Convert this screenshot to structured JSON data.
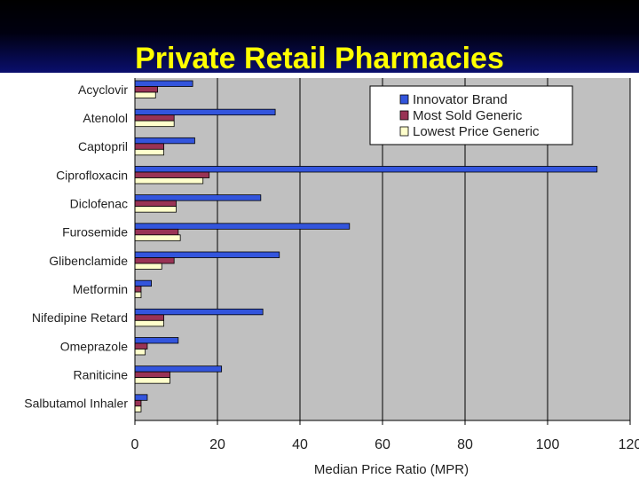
{
  "slide": {
    "title": "Private Retail Pharmacies"
  },
  "chart_data": {
    "type": "bar",
    "orientation": "horizontal",
    "title": "Private Retail Pharmacies",
    "xlabel": "Median Price Ratio (MPR)",
    "ylabel": "",
    "xlim": [
      0,
      120
    ],
    "xticks": [
      0,
      20,
      40,
      60,
      80,
      100,
      120
    ],
    "grid": "vertical",
    "legend_position": "top-right",
    "categories": [
      "Acyclovir",
      "Atenolol",
      "Captopril",
      "Ciprofloxacin",
      "Diclofenac",
      "Furosemide",
      "Glibenclamide",
      "Metformin",
      "Nifedipine Retard",
      "Omeprazole",
      "Raniticine",
      "Salbutamol Inhaler"
    ],
    "series": [
      {
        "name": "Innovator Brand",
        "color": "#3355dd",
        "values": [
          14,
          34,
          14.5,
          112,
          30.5,
          52,
          35,
          4,
          31,
          10.5,
          21,
          3
        ]
      },
      {
        "name": "Most Sold Generic",
        "color": "#993355",
        "values": [
          5.5,
          9.5,
          7,
          18,
          10,
          10.5,
          9.5,
          1.5,
          7,
          3,
          8.5,
          1.5
        ]
      },
      {
        "name": "Lowest Price Generic",
        "color": "#ffffcc",
        "values": [
          5,
          9.5,
          7,
          16.5,
          10,
          11,
          6.5,
          1.5,
          7,
          2.5,
          8.5,
          1.5
        ]
      }
    ]
  }
}
